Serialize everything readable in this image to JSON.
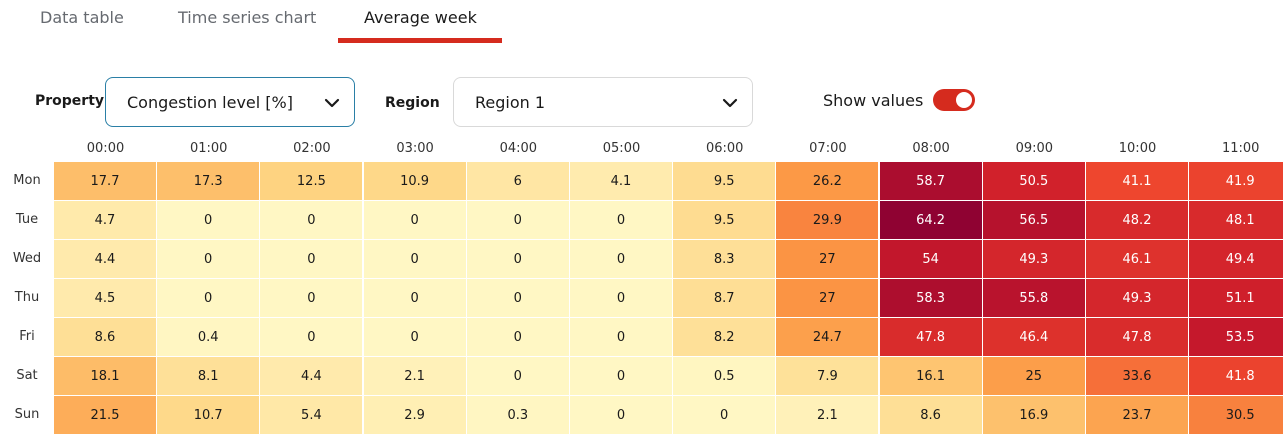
{
  "tabs": [
    {
      "label": "Data table",
      "active": false
    },
    {
      "label": "Time series chart",
      "active": false
    },
    {
      "label": "Average week",
      "active": true
    }
  ],
  "accent_color": "#d52b1e",
  "controls": {
    "property": {
      "label": "Property",
      "value": "Congestion level [%]"
    },
    "region": {
      "label": "Region",
      "value": "Region 1"
    },
    "show_values": {
      "label": "Show values",
      "on": true
    }
  },
  "chart_data": {
    "type": "heatmap",
    "x": [
      "00:00",
      "01:00",
      "02:00",
      "03:00",
      "04:00",
      "05:00",
      "06:00",
      "07:00",
      "08:00",
      "09:00",
      "10:00",
      "11:00"
    ],
    "y": [
      "Mon",
      "Tue",
      "Wed",
      "Thu",
      "Fri",
      "Sat",
      "Sun"
    ],
    "values": [
      [
        17.7,
        17.3,
        12.5,
        10.9,
        6,
        4.1,
        9.5,
        26.2,
        58.7,
        50.5,
        41.1,
        41.9
      ],
      [
        4.7,
        0,
        0,
        0,
        0,
        0,
        9.5,
        29.9,
        64.2,
        56.5,
        48.2,
        48.1
      ],
      [
        4.4,
        0,
        0,
        0,
        0,
        0,
        8.3,
        27,
        54,
        49.3,
        46.1,
        49.4
      ],
      [
        4.5,
        0,
        0,
        0,
        0,
        0,
        8.7,
        27,
        58.3,
        55.8,
        49.3,
        51.1
      ],
      [
        8.6,
        0.4,
        0,
        0,
        0,
        0,
        8.2,
        24.7,
        47.8,
        46.4,
        47.8,
        53.5
      ],
      [
        18.1,
        8.1,
        4.4,
        2.1,
        0,
        0,
        0.5,
        7.9,
        16.1,
        25,
        33.6,
        41.8
      ],
      [
        21.5,
        10.7,
        5.4,
        2.9,
        0.3,
        0,
        0,
        2.1,
        8.6,
        16.9,
        23.7,
        30.5
      ]
    ],
    "color_scale": [
      "#fff7c4",
      "#fed27e",
      "#fc9a46",
      "#f0492e",
      "#cc1b2b",
      "#8b0032"
    ],
    "show_values": true
  }
}
